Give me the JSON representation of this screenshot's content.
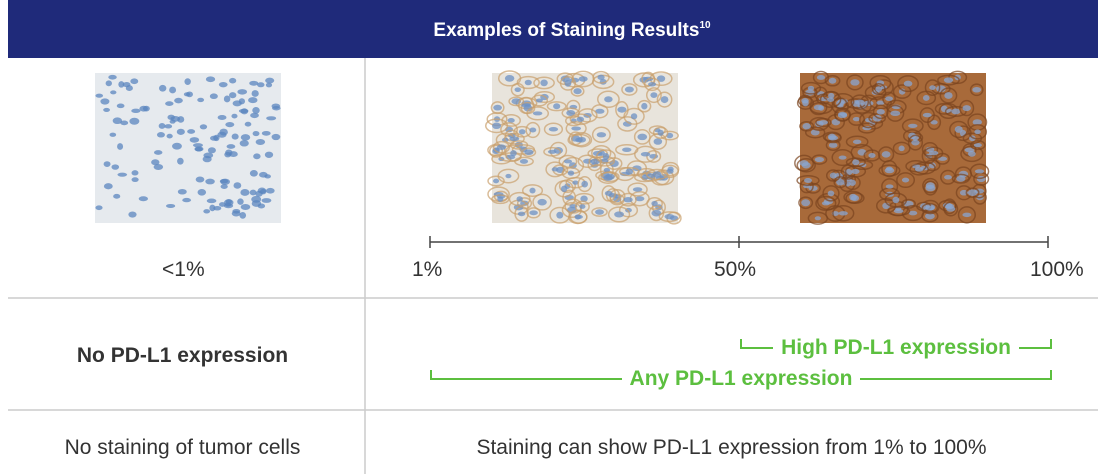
{
  "header": {
    "title": "Examples of Staining Results",
    "superscript": "10"
  },
  "scale": {
    "left_label": "<1%",
    "labels": [
      "1%",
      "50%",
      "100%"
    ]
  },
  "expression_row": {
    "left": "No PD-L1 expression",
    "high": "High PD-L1 expression",
    "any": "Any PD-L1 expression"
  },
  "staining_row": {
    "left": "No staining of tumor cells",
    "right": "Staining can show PD-L1 expression from 1% to 100%"
  }
}
